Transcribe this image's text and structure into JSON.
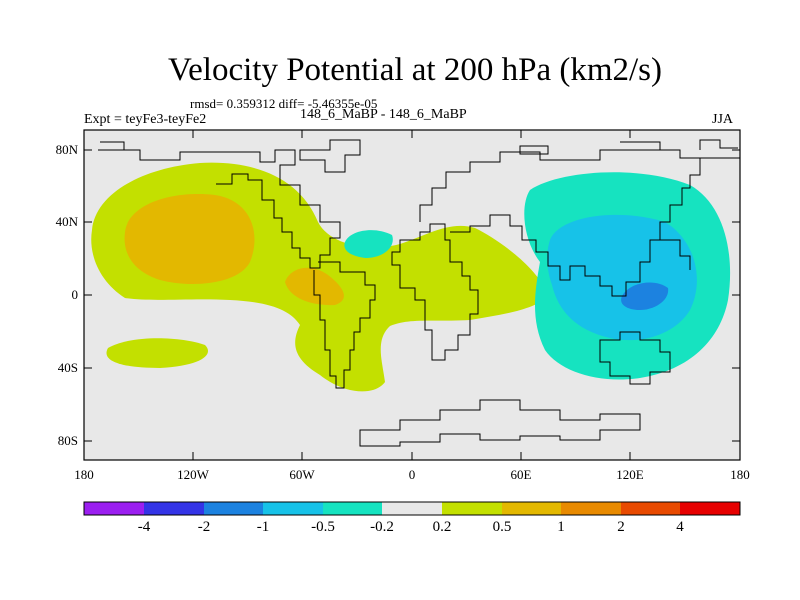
{
  "title": "Velocity Potential at 200 hPa (km2/s)",
  "stats": "rmsd= 0.359312 diff= -5.46355e-05",
  "expt_label": "Expt = teyFe3-teyFe2",
  "center_label": "148_6_MaBP - 148_6_MaBP",
  "season": "JJA",
  "axes": {
    "y_ticks": [
      {
        "label": "80N"
      },
      {
        "label": "40N"
      },
      {
        "label": "0"
      },
      {
        "label": "40S"
      },
      {
        "label": "80S"
      }
    ],
    "x_ticks": [
      {
        "label": "180"
      },
      {
        "label": "120W"
      },
      {
        "label": "60W"
      },
      {
        "label": "0"
      },
      {
        "label": "60E"
      },
      {
        "label": "120E"
      },
      {
        "label": "180"
      }
    ]
  },
  "colorbar": {
    "colors": [
      "#9b1ff0",
      "#3434e6",
      "#1c82e0",
      "#17c2e8",
      "#16e3c0",
      "#e8e8e8",
      "#c3e000",
      "#e3b800",
      "#e88a00",
      "#e84a00",
      "#e60000"
    ],
    "labels": [
      "-4",
      "-2",
      "-1",
      "-0.5",
      "-0.2",
      "0.2",
      "0.5",
      "1",
      "2",
      "4"
    ]
  }
}
